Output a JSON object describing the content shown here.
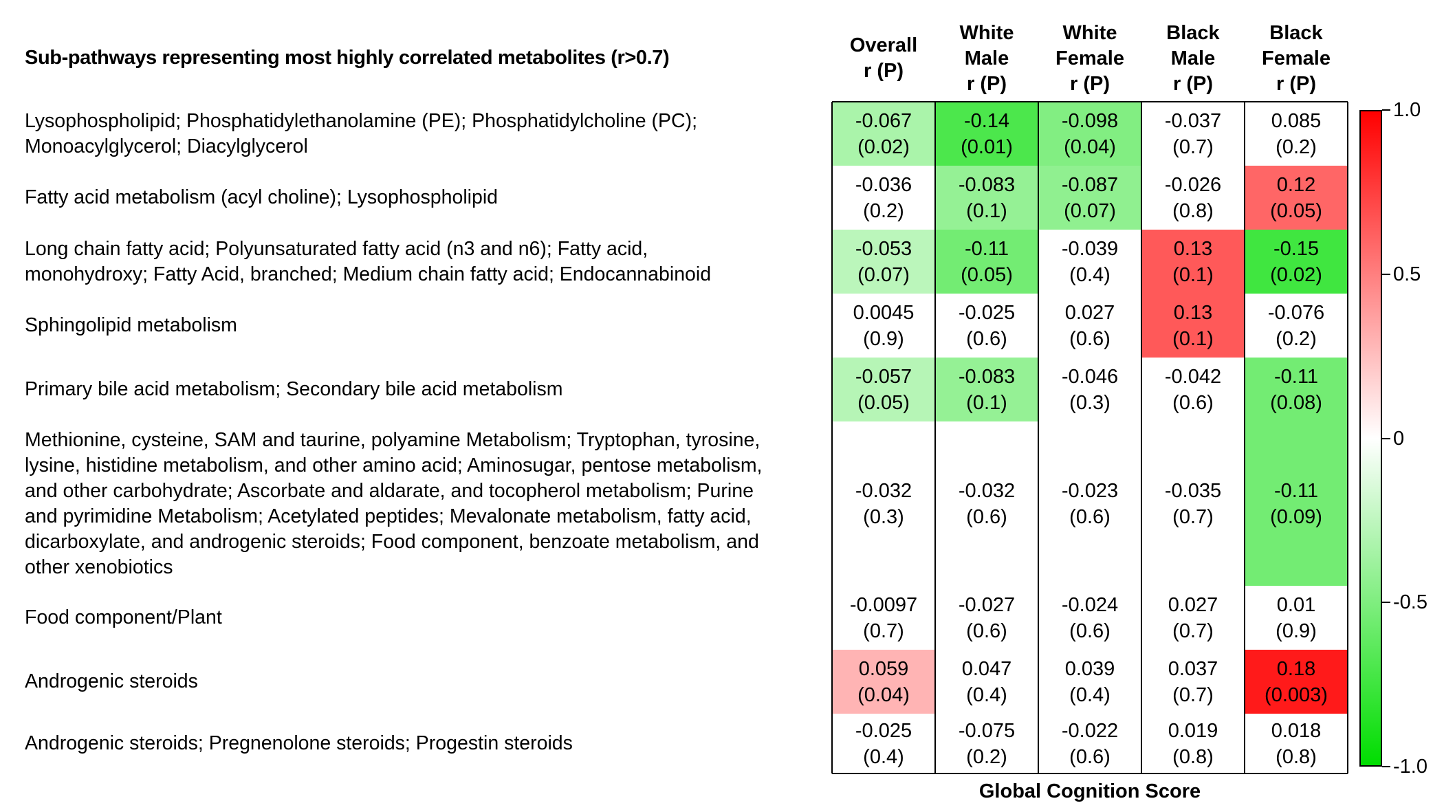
{
  "chart_data": {
    "type": "heatmap",
    "title": "",
    "row_header": "Sub-pathways representing most highly correlated metabolites (r>0.7)",
    "xlabel": "Global Cognition Score",
    "columns": [
      "Overall\nr (P)",
      "White\nMale\nr (P)",
      "White\nFemale\nr (P)",
      "Black\nMale\nr (P)",
      "Black\nFemale\nr (P)"
    ],
    "rows": [
      {
        "label": [
          "Lysophospholipid; Phosphatidylethanolamine (PE); Phosphatidylcholine (PC);",
          "Monoacylglycerol; Diacylglycerol"
        ],
        "r": [
          -0.067,
          -0.14,
          -0.098,
          -0.037,
          0.085
        ],
        "r_text": [
          "-0.067",
          "-0.14",
          "-0.098",
          "-0.037",
          "0.085"
        ],
        "p_text": [
          "(0.02)",
          "(0.01)",
          "(0.04)",
          "(0.7)",
          "(0.2)"
        ],
        "p": [
          0.02,
          0.01,
          0.04,
          0.7,
          0.2
        ]
      },
      {
        "label": [
          "Fatty acid metabolism (acyl choline); Lysophospholipid"
        ],
        "r": [
          -0.036,
          -0.083,
          -0.087,
          -0.026,
          0.12
        ],
        "r_text": [
          "-0.036",
          "-0.083",
          "-0.087",
          "-0.026",
          "0.12"
        ],
        "p_text": [
          "(0.2)",
          "(0.1)",
          "(0.07)",
          "(0.8)",
          "(0.05)"
        ],
        "p": [
          0.2,
          0.1,
          0.07,
          0.8,
          0.05
        ]
      },
      {
        "label": [
          "Long chain fatty acid; Polyunsaturated fatty acid (n3 and n6); Fatty acid,",
          "monohydroxy; Fatty Acid, branched; Medium chain fatty acid; Endocannabinoid"
        ],
        "r": [
          -0.053,
          -0.11,
          -0.039,
          0.13,
          -0.15
        ],
        "r_text": [
          "-0.053",
          "-0.11",
          "-0.039",
          "0.13",
          "-0.15"
        ],
        "p_text": [
          "(0.07)",
          "(0.05)",
          "(0.4)",
          "(0.1)",
          "(0.02)"
        ],
        "p": [
          0.07,
          0.05,
          0.4,
          0.1,
          0.02
        ]
      },
      {
        "label": [
          "Sphingolipid metabolism"
        ],
        "r": [
          0.0045,
          -0.025,
          0.027,
          0.13,
          -0.076
        ],
        "r_text": [
          "0.0045",
          "-0.025",
          "0.027",
          "0.13",
          "-0.076"
        ],
        "p_text": [
          "(0.9)",
          "(0.6)",
          "(0.6)",
          "(0.1)",
          "(0.2)"
        ],
        "p": [
          0.9,
          0.6,
          0.6,
          0.1,
          0.2
        ]
      },
      {
        "label": [
          "Primary bile acid metabolism; Secondary bile acid metabolism"
        ],
        "r": [
          -0.057,
          -0.083,
          -0.046,
          -0.042,
          -0.11
        ],
        "r_text": [
          "-0.057",
          "-0.083",
          "-0.046",
          "-0.042",
          "-0.11"
        ],
        "p_text": [
          "(0.05)",
          "(0.1)",
          "(0.3)",
          "(0.6)",
          "(0.08)"
        ],
        "p": [
          0.05,
          0.1,
          0.3,
          0.6,
          0.08
        ]
      },
      {
        "label": [
          "Methionine, cysteine, SAM and taurine, polyamine Metabolism; Tryptophan, tyrosine,",
          "lysine, histidine metabolism, and other amino acid; Aminosugar, pentose metabolism,",
          "and other carbohydrate; Ascorbate and aldarate, and tocopherol metabolism; Purine",
          "and pyrimidine Metabolism; Acetylated peptides; Mevalonate metabolism, fatty acid,",
          "dicarboxylate, and androgenic steroids; Food component, benzoate metabolism, and",
          "other xenobiotics"
        ],
        "r": [
          -0.032,
          -0.032,
          -0.023,
          -0.035,
          -0.11
        ],
        "r_text": [
          "-0.032",
          "-0.032",
          "-0.023",
          "-0.035",
          "-0.11"
        ],
        "p_text": [
          "(0.3)",
          "(0.6)",
          "(0.6)",
          "(0.7)",
          "(0.09)"
        ],
        "p": [
          0.3,
          0.6,
          0.6,
          0.7,
          0.09
        ]
      },
      {
        "label": [
          "Food component/Plant"
        ],
        "r": [
          -0.0097,
          -0.027,
          -0.024,
          0.027,
          0.01
        ],
        "r_text": [
          "-0.0097",
          "-0.027",
          "-0.024",
          "0.027",
          "0.01"
        ],
        "p_text": [
          "(0.7)",
          "(0.6)",
          "(0.6)",
          "(0.7)",
          "(0.9)"
        ],
        "p": [
          0.7,
          0.6,
          0.6,
          0.7,
          0.9
        ]
      },
      {
        "label": [
          "Androgenic steroids"
        ],
        "r": [
          0.059,
          0.047,
          0.039,
          0.037,
          0.18
        ],
        "r_text": [
          "0.059",
          "0.047",
          "0.039",
          "0.037",
          "0.18"
        ],
        "p_text": [
          "(0.04)",
          "(0.4)",
          "(0.4)",
          "(0.7)",
          "(0.003)"
        ],
        "p": [
          0.04,
          0.4,
          0.4,
          0.7,
          0.003
        ]
      },
      {
        "label": [
          "Androgenic steroids; Pregnenolone steroids; Progestin steroids"
        ],
        "r": [
          -0.025,
          -0.075,
          -0.022,
          0.019,
          0.018
        ],
        "r_text": [
          "-0.025",
          "-0.075",
          "-0.022",
          "0.019",
          "0.018"
        ],
        "p_text": [
          "(0.4)",
          "(0.2)",
          "(0.6)",
          "(0.8)",
          "(0.8)"
        ],
        "p": [
          0.4,
          0.2,
          0.6,
          0.8,
          0.8
        ]
      }
    ],
    "colorbar": {
      "range": [
        -1.0,
        1.0
      ],
      "ticks": [
        1.0,
        0.5,
        0,
        -0.5,
        -1.0
      ],
      "tick_labels": [
        "1.0",
        "0.5",
        "0",
        "-0.5",
        "-1.0"
      ],
      "low_color": "#00dd00",
      "mid_color": "#ffffff",
      "high_color": "#ff0000"
    },
    "grid": true,
    "legend": "right"
  }
}
